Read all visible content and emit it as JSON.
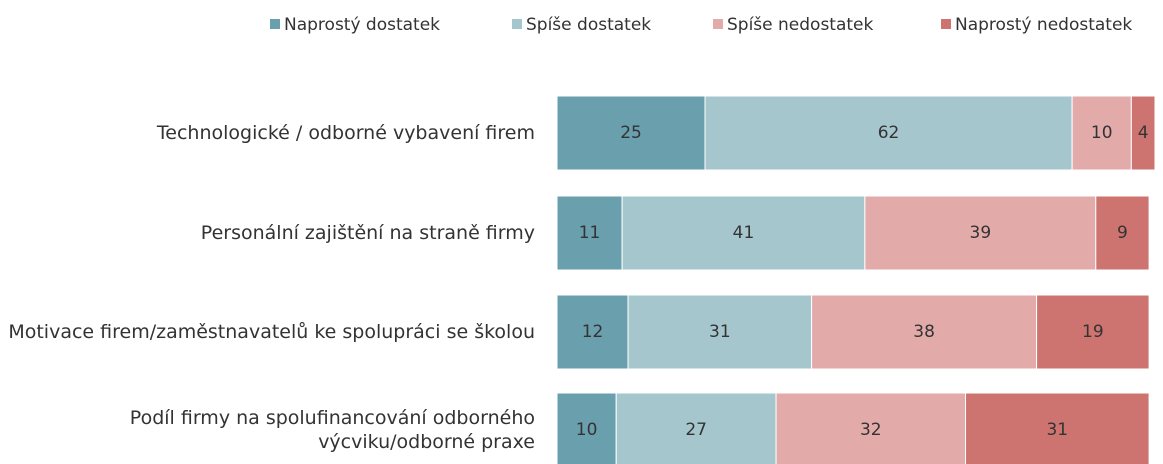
{
  "chart_data": {
    "type": "stacked-bar-horizontal",
    "categories": [
      "Technologické / odborné vybavení firem",
      "Personální zajištění na straně firmy",
      "Motivace firem/zaměstnavatelů ke spolupráci se školou",
      "Podíl firmy na spolufinancování odborného výcviku/odborné praxe"
    ],
    "series": [
      {
        "name": "Naprostý dostatek",
        "color": "#6a9fad",
        "values": [
          25,
          11,
          12,
          10
        ]
      },
      {
        "name": "Spíše dostatek",
        "color": "#a6c6cd",
        "values": [
          62,
          41,
          31,
          27
        ]
      },
      {
        "name": "Spíše nedostatek",
        "color": "#e2abaa",
        "values": [
          10,
          39,
          38,
          32
        ]
      },
      {
        "name": "Naprostý nedostatek",
        "color": "#cd7470",
        "values": [
          4,
          9,
          19,
          31
        ]
      }
    ],
    "xlim": [
      0,
      101
    ],
    "legend": "top"
  }
}
